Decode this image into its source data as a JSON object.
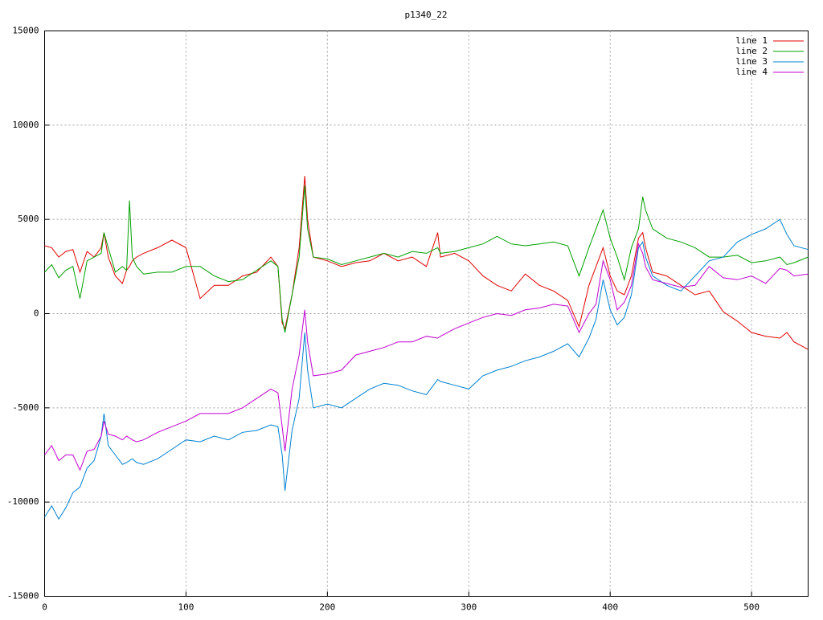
{
  "chart_data": {
    "type": "line",
    "title": "p1340_22",
    "x": [
      0,
      5,
      10,
      15,
      20,
      25,
      30,
      35,
      40,
      42,
      45,
      50,
      55,
      58,
      60,
      62,
      65,
      70,
      80,
      90,
      100,
      110,
      120,
      130,
      140,
      150,
      160,
      165,
      168,
      170,
      175,
      180,
      184,
      186,
      190,
      200,
      210,
      220,
      230,
      240,
      250,
      260,
      270,
      278,
      280,
      290,
      300,
      310,
      320,
      330,
      340,
      350,
      360,
      370,
      378,
      385,
      390,
      395,
      400,
      405,
      410,
      415,
      420,
      423,
      425,
      430,
      440,
      450,
      460,
      470,
      480,
      490,
      500,
      510,
      520,
      525,
      530,
      540
    ],
    "series": [
      {
        "name": "line 1",
        "color": "#e00000",
        "values": [
          3600,
          3500,
          3000,
          3300,
          3400,
          2200,
          3300,
          3000,
          3500,
          4300,
          3000,
          2000,
          1600,
          2300,
          2500,
          2800,
          3000,
          3200,
          3500,
          3900,
          3500,
          800,
          1500,
          1500,
          2000,
          2200,
          3000,
          2500,
          -500,
          -800,
          1000,
          3500,
          7300,
          5000,
          3000,
          2800,
          2500,
          2700,
          2800,
          3200,
          2800,
          3000,
          2500,
          4300,
          3000,
          3200,
          2800,
          2000,
          1500,
          1200,
          2100,
          1500,
          1200,
          700,
          -700,
          1500,
          2500,
          3500,
          2000,
          1200,
          1000,
          2000,
          4000,
          4300,
          3500,
          2200,
          2000,
          1500,
          1000,
          1200,
          100,
          -400,
          -1000,
          -1200,
          -1300,
          -1000,
          -1500,
          -1900
        ]
      },
      {
        "name": "line 2",
        "color": "#00a000",
        "values": [
          2200,
          2600,
          1900,
          2300,
          2500,
          800,
          2800,
          3000,
          3200,
          4300,
          3500,
          2200,
          2500,
          2300,
          6000,
          3000,
          2500,
          2100,
          2200,
          2200,
          2500,
          2500,
          2000,
          1700,
          1800,
          2300,
          2800,
          2500,
          -300,
          -1000,
          1000,
          3000,
          6800,
          4500,
          3000,
          2900,
          2600,
          2800,
          3000,
          3200,
          3000,
          3300,
          3200,
          3500,
          3200,
          3300,
          3500,
          3700,
          4100,
          3700,
          3600,
          3700,
          3800,
          3600,
          2000,
          3500,
          4500,
          5500,
          4000,
          3000,
          1800,
          3500,
          4500,
          6200,
          5500,
          4500,
          4000,
          3800,
          3500,
          3000,
          3000,
          3100,
          2700,
          2800,
          3000,
          2600,
          2700,
          3000
        ]
      },
      {
        "name": "line 3",
        "color": "#0080d0",
        "values": [
          -10800,
          -10200,
          -10900,
          -10300,
          -9500,
          -9200,
          -8200,
          -7800,
          -6500,
          -5300,
          -7000,
          -7500,
          -8000,
          -7900,
          -7800,
          -7700,
          -7900,
          -8000,
          -7700,
          -7200,
          -6700,
          -6800,
          -6500,
          -6700,
          -6300,
          -6200,
          -5900,
          -6000,
          -7500,
          -9400,
          -6200,
          -4500,
          -1000,
          -3000,
          -5000,
          -4800,
          -5000,
          -4500,
          -4000,
          -3700,
          -3800,
          -4100,
          -4300,
          -3500,
          -3600,
          -3800,
          -4000,
          -3300,
          -3000,
          -2800,
          -2500,
          -2300,
          -2000,
          -1600,
          -2300,
          -1300,
          -300,
          1800,
          200,
          -600,
          -200,
          1000,
          3500,
          3800,
          3000,
          2000,
          1500,
          1200,
          2000,
          2800,
          3000,
          3800,
          4200,
          4500,
          5000,
          4200,
          3600,
          3400
        ]
      },
      {
        "name": "line 4",
        "color": "#c000d0",
        "values": [
          -7500,
          -7000,
          -7800,
          -7500,
          -7500,
          -8300,
          -7300,
          -7200,
          -6500,
          -5700,
          -6400,
          -6500,
          -6700,
          -6500,
          -6600,
          -6700,
          -6800,
          -6700,
          -6300,
          -6000,
          -5700,
          -5300,
          -5300,
          -5300,
          -5000,
          -4500,
          -4000,
          -4200,
          -6000,
          -7300,
          -4000,
          -2200,
          200,
          -1500,
          -3300,
          -3200,
          -3000,
          -2200,
          -2000,
          -1800,
          -1500,
          -1500,
          -1200,
          -1300,
          -1200,
          -800,
          -500,
          -200,
          0,
          -100,
          200,
          300,
          500,
          400,
          -1000,
          0,
          500,
          2800,
          1800,
          200,
          600,
          1500,
          3700,
          3200,
          2500,
          1800,
          1600,
          1400,
          1500,
          2500,
          1900,
          1800,
          2000,
          1600,
          2400,
          2300,
          2000,
          2100
        ]
      }
    ],
    "xlim": [
      0,
      540
    ],
    "xticks": [
      0,
      100,
      200,
      300,
      400,
      500
    ],
    "ylim": [
      -15000,
      15000
    ],
    "yticks": [
      -15000,
      -10000,
      -5000,
      0,
      5000,
      10000,
      15000
    ],
    "grid": true,
    "legend": "top-right"
  }
}
